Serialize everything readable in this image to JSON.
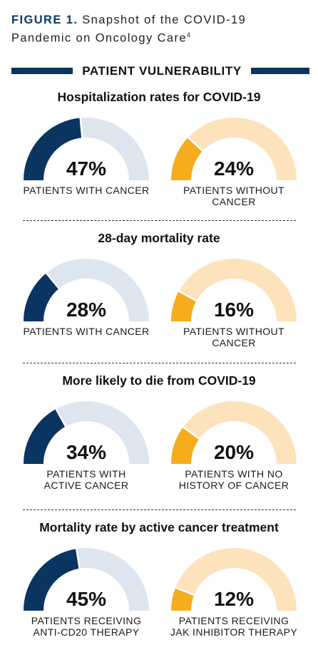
{
  "figure": {
    "label": "FIGURE 1.",
    "title_line1": "Snapshot of the COVID-19",
    "title_line2": "Pandemic on Oncology Care",
    "ref": "4"
  },
  "section_heading": "PATIENT VULNERABILITY",
  "colors": {
    "band": "#0b3561",
    "cancer_fill": "#0b3561",
    "cancer_track": "#dde6ee",
    "comparison_fill": "#f5ad1e",
    "comparison_track": "#fde3bc"
  },
  "chart_data": [
    {
      "type": "gauge",
      "title": "Hospitalization rates for COVID-19",
      "unit": "%",
      "range": [
        0,
        100
      ],
      "categories": [
        "PATIENTS WITH CANCER",
        "PATIENTS WITHOUT CANCER"
      ],
      "values": [
        47,
        24
      ],
      "value_labels": [
        "47%",
        "24%"
      ],
      "group_labels": [
        [
          "PATIENTS WITH CANCER"
        ],
        [
          "PATIENTS WITHOUT",
          "CANCER"
        ]
      ]
    },
    {
      "type": "gauge",
      "title": "28-day mortality rate",
      "unit": "%",
      "range": [
        0,
        100
      ],
      "categories": [
        "PATIENTS WITH CANCER",
        "PATIENTS WITHOUT CANCER"
      ],
      "values": [
        28,
        16
      ],
      "value_labels": [
        "28%",
        "16%"
      ],
      "group_labels": [
        [
          "PATIENTS WITH CANCER"
        ],
        [
          "PATIENTS WITHOUT",
          "CANCER"
        ]
      ]
    },
    {
      "type": "gauge",
      "title": "More likely to die from COVID-19",
      "unit": "%",
      "range": [
        0,
        100
      ],
      "categories": [
        "PATIENTS WITH ACTIVE CANCER",
        "PATIENTS WITH NO HISTORY OF CANCER"
      ],
      "values": [
        34,
        20
      ],
      "value_labels": [
        "34%",
        "20%"
      ],
      "group_labels": [
        [
          "PATIENTS WITH",
          "ACTIVE CANCER"
        ],
        [
          "PATIENTS WITH NO",
          "HISTORY OF CANCER"
        ]
      ]
    },
    {
      "type": "gauge",
      "title": "Mortality rate by active cancer treatment",
      "unit": "%",
      "range": [
        0,
        100
      ],
      "categories": [
        "PATIENTS RECEIVING ANTI-CD20 THERAPY",
        "PATIENTS RECEIVING JAK INHIBITOR THERAPY"
      ],
      "values": [
        45,
        12
      ],
      "value_labels": [
        "45%",
        "12%"
      ],
      "group_labels": [
        [
          "PATIENTS RECEIVING",
          "ANTI-CD20 THERAPY"
        ],
        [
          "PATIENTS RECEIVING",
          "JAK INHIBITOR THERAPY"
        ]
      ]
    }
  ]
}
